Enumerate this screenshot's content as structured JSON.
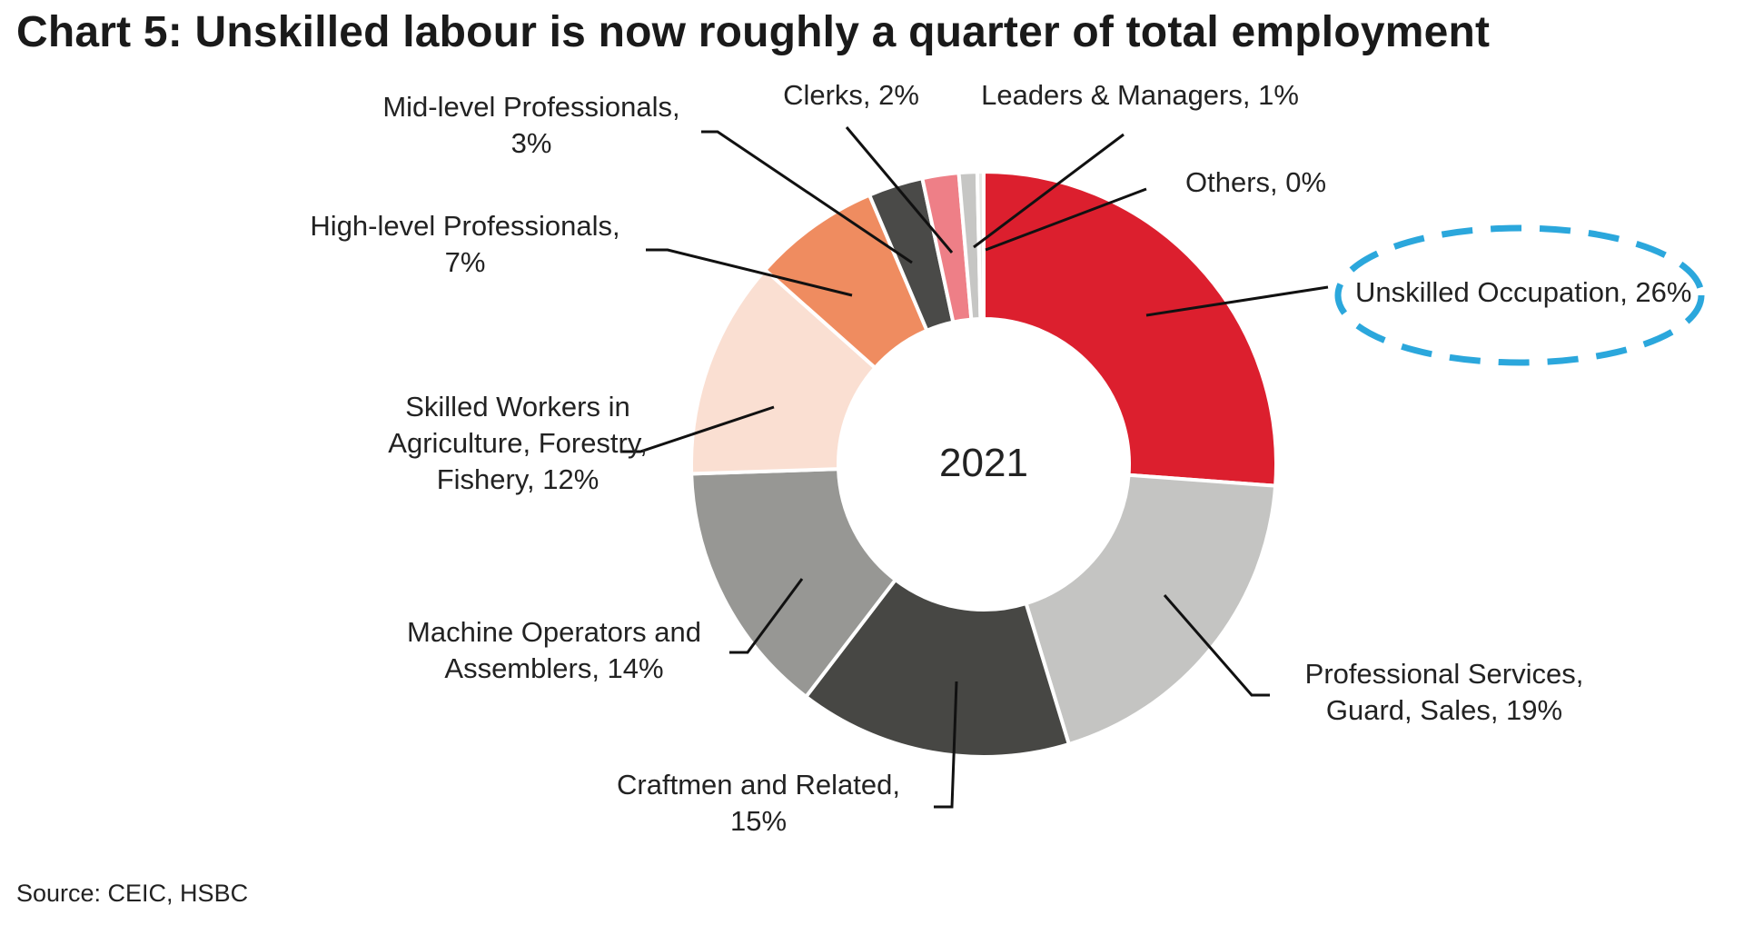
{
  "chart_data": {
    "type": "pie",
    "title": "Chart 5: Unskilled labour is now roughly a quarter of total employment",
    "center_label": "2021",
    "slices": [
      {
        "label": "Unskilled Occupation, 26%",
        "value": 26,
        "color": "#dc1f2e"
      },
      {
        "label": "Professional Services, Guard, Sales, 19%",
        "value": 19,
        "color": "#c4c4c2"
      },
      {
        "label": "Craftmen and Related, 15%",
        "value": 15,
        "color": "#474744"
      },
      {
        "label": "Machine Operators and Assemblers, 14%",
        "value": 14,
        "color": "#979794"
      },
      {
        "label": "Skilled Workers in Agriculture, Forestry, Fishery, 12%",
        "value": 12,
        "color": "#fadfd2"
      },
      {
        "label": "High-level Professionals, 7%",
        "value": 7,
        "color": "#ef8c60"
      },
      {
        "label": "Mid-level Professionals, 3%",
        "value": 3,
        "color": "#4a4a48"
      },
      {
        "label": "Clerks, 2%",
        "value": 2,
        "color": "#ee7f87"
      },
      {
        "label": "Leaders & Managers, 1%",
        "value": 1,
        "color": "#c6c6c4"
      },
      {
        "label": "Others, 0%",
        "value": 0.35,
        "color": "#e8e8e6"
      }
    ],
    "highlight": "Unskilled Occupation, 26%",
    "highlight_color": "#2ba7dc"
  },
  "source": "Source: CEIC, HSBC"
}
